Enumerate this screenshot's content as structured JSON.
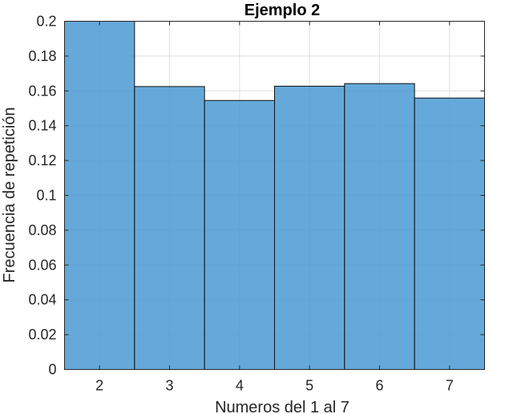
{
  "chart_data": {
    "type": "bar",
    "title": "Ejemplo 2",
    "xlabel": "Numeros del 1 al 7",
    "ylabel": "Frecuencia de repetición",
    "categories": [
      "2",
      "3",
      "4",
      "5",
      "6",
      "7"
    ],
    "values": [
      0.2,
      0.1625,
      0.1545,
      0.1627,
      0.1642,
      0.1559
    ],
    "bin_edges": [
      1.5,
      2.5,
      3.5,
      4.5,
      5.5,
      6.5,
      7.5
    ],
    "xlim": [
      1.5,
      7.5
    ],
    "ylim": [
      0,
      0.2
    ],
    "xticks": [
      2,
      3,
      4,
      5,
      6,
      7
    ],
    "xtick_labels": [
      "2",
      "3",
      "4",
      "5",
      "6",
      "7"
    ],
    "yticks": [
      0,
      0.02,
      0.04,
      0.06,
      0.08,
      0.1,
      0.12,
      0.14,
      0.16,
      0.18,
      0.2
    ],
    "ytick_labels": [
      "0",
      "0.02",
      "0.04",
      "0.06",
      "0.08",
      "0.1",
      "0.12",
      "0.14",
      "0.16",
      "0.18",
      "0.2"
    ],
    "grid": true,
    "bar_color": "#4a9ad3",
    "edge_color": "#111111"
  }
}
